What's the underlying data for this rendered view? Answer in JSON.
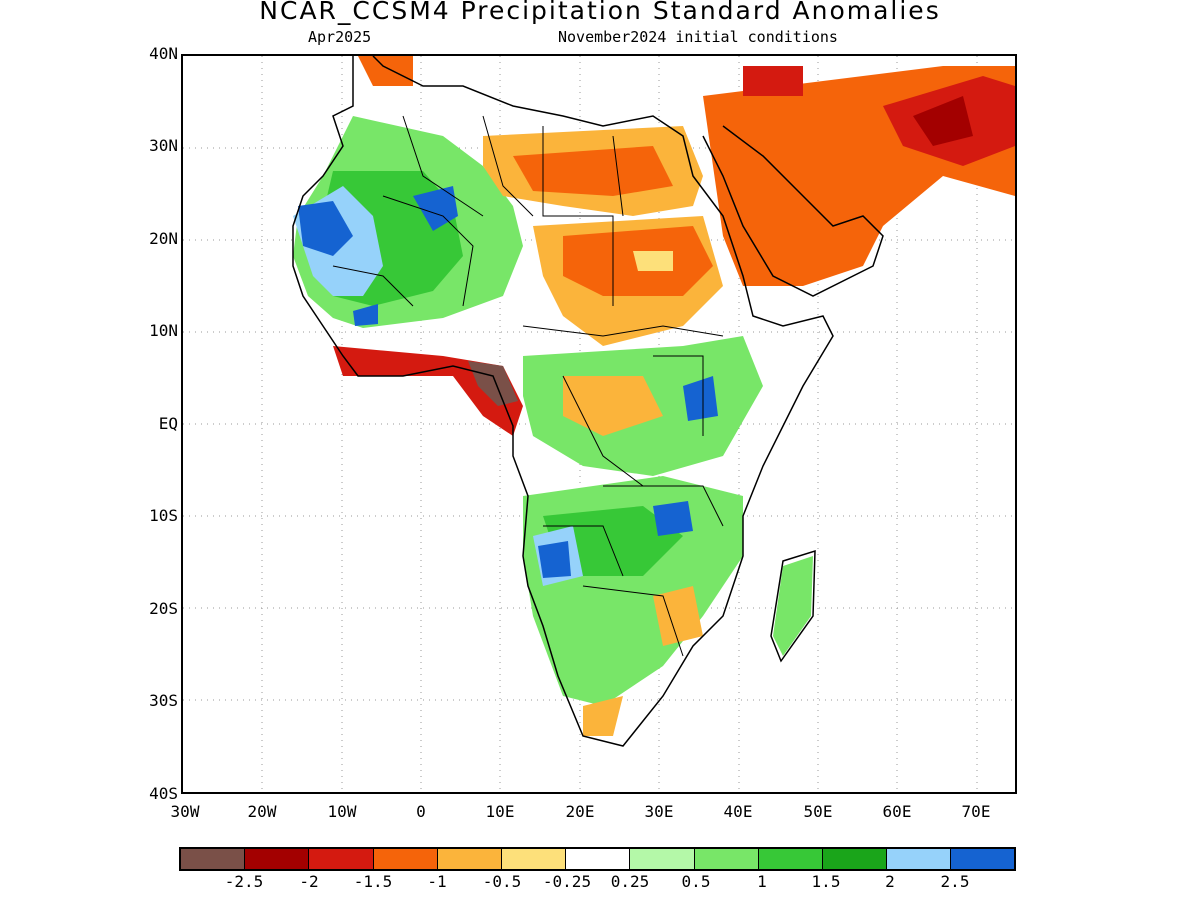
{
  "title": "NCAR_CCSM4 Precipitation Standard Anomalies",
  "subtitle_left": "Apr2025",
  "subtitle_right": "November2024 initial conditions",
  "y_labels": [
    "40N",
    "30N",
    "20N",
    "10N",
    "EQ",
    "10S",
    "20S",
    "30S",
    "40S"
  ],
  "x_labels": [
    "30W",
    "20W",
    "10W",
    "0",
    "10E",
    "20E",
    "30E",
    "40E",
    "50E",
    "60E",
    "70E"
  ],
  "colorbar": {
    "colors": [
      "#7a5048",
      "#a30000",
      "#d41a10",
      "#f5640a",
      "#fbb43b",
      "#fde07a",
      "#ffffff",
      "#b4f8a8",
      "#78e668",
      "#37c837",
      "#1aa51a",
      "#96d2fa",
      "#1563d1"
    ],
    "labels": [
      "-2.5",
      "-2",
      "-1.5",
      "-1",
      "-0.5",
      "-0.25",
      "0.25",
      "0.5",
      "1",
      "1.5",
      "2",
      "2.5"
    ]
  }
}
